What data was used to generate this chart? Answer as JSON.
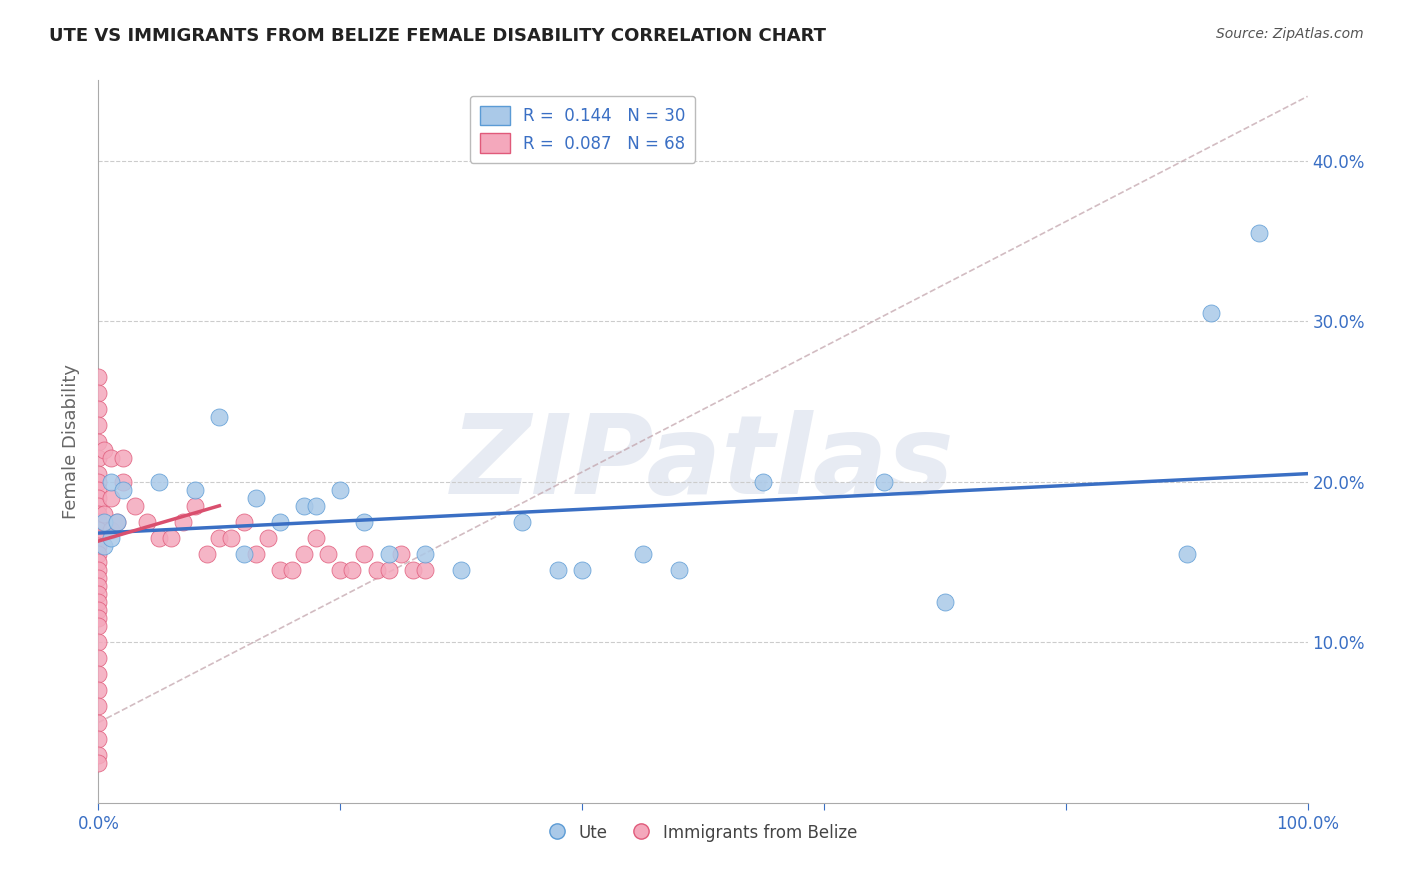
{
  "title": "UTE VS IMMIGRANTS FROM BELIZE FEMALE DISABILITY CORRELATION CHART",
  "source": "Source: ZipAtlas.com",
  "ylabel": "Female Disability",
  "watermark": "ZIPatlas",
  "legend_blue_R": "0.144",
  "legend_blue_N": "30",
  "legend_pink_R": "0.087",
  "legend_pink_N": "68",
  "xlim": [
    0.0,
    1.0
  ],
  "ylim": [
    0.0,
    0.45
  ],
  "yticks": [
    0.1,
    0.2,
    0.3,
    0.4
  ],
  "ytick_labels": [
    "10.0%",
    "20.0%",
    "30.0%",
    "40.0%"
  ],
  "xticks": [
    0.0,
    0.2,
    0.4,
    0.6,
    0.8,
    1.0
  ],
  "xtick_labels_show": [
    "0.0%",
    "",
    "",
    "",
    "",
    "100.0%"
  ],
  "blue_color": "#aac9e8",
  "pink_color": "#f4a8bc",
  "blue_edge_color": "#5b9bd5",
  "pink_edge_color": "#e05a7a",
  "blue_line_color": "#3a6fc4",
  "pink_line_color": "#d94f6e",
  "gray_dash_color": "#c8aab0",
  "title_color": "#222222",
  "axis_label_color": "#666666",
  "tick_color": "#3a6fc4",
  "grid_color": "#cccccc",
  "blue_scatter_x": [
    0.005,
    0.005,
    0.01,
    0.01,
    0.015,
    0.02,
    0.05,
    0.08,
    0.1,
    0.12,
    0.13,
    0.15,
    0.17,
    0.18,
    0.2,
    0.22,
    0.24,
    0.27,
    0.3,
    0.35,
    0.38,
    0.4,
    0.45,
    0.48,
    0.55,
    0.65,
    0.7,
    0.9,
    0.92,
    0.96
  ],
  "blue_scatter_y": [
    0.175,
    0.16,
    0.2,
    0.165,
    0.175,
    0.195,
    0.2,
    0.195,
    0.24,
    0.155,
    0.19,
    0.175,
    0.185,
    0.185,
    0.195,
    0.175,
    0.155,
    0.155,
    0.145,
    0.175,
    0.145,
    0.145,
    0.155,
    0.145,
    0.2,
    0.2,
    0.125,
    0.155,
    0.305,
    0.355
  ],
  "pink_scatter_x": [
    0.0,
    0.0,
    0.0,
    0.0,
    0.0,
    0.0,
    0.0,
    0.0,
    0.0,
    0.0,
    0.0,
    0.0,
    0.0,
    0.0,
    0.0,
    0.0,
    0.0,
    0.0,
    0.0,
    0.0,
    0.0,
    0.0,
    0.0,
    0.0,
    0.0,
    0.0,
    0.0,
    0.0,
    0.0,
    0.0,
    0.0,
    0.0,
    0.0,
    0.0,
    0.0,
    0.005,
    0.005,
    0.01,
    0.01,
    0.01,
    0.015,
    0.02,
    0.02,
    0.03,
    0.04,
    0.05,
    0.06,
    0.07,
    0.08,
    0.09,
    0.1,
    0.11,
    0.12,
    0.13,
    0.14,
    0.15,
    0.16,
    0.17,
    0.18,
    0.19,
    0.2,
    0.21,
    0.22,
    0.23,
    0.24,
    0.25,
    0.26,
    0.27
  ],
  "pink_scatter_y": [
    0.265,
    0.255,
    0.245,
    0.235,
    0.225,
    0.215,
    0.205,
    0.2,
    0.195,
    0.19,
    0.185,
    0.18,
    0.175,
    0.17,
    0.165,
    0.16,
    0.155,
    0.15,
    0.145,
    0.14,
    0.135,
    0.13,
    0.125,
    0.12,
    0.115,
    0.11,
    0.1,
    0.09,
    0.08,
    0.07,
    0.06,
    0.05,
    0.04,
    0.03,
    0.025,
    0.22,
    0.18,
    0.215,
    0.19,
    0.17,
    0.175,
    0.215,
    0.2,
    0.185,
    0.175,
    0.165,
    0.165,
    0.175,
    0.185,
    0.155,
    0.165,
    0.165,
    0.175,
    0.155,
    0.165,
    0.145,
    0.145,
    0.155,
    0.165,
    0.155,
    0.145,
    0.145,
    0.155,
    0.145,
    0.145,
    0.155,
    0.145,
    0.145
  ],
  "blue_trend_x": [
    0.0,
    1.0
  ],
  "blue_trend_y": [
    0.168,
    0.205
  ],
  "pink_trend_x": [
    0.0,
    0.1
  ],
  "pink_trend_y": [
    0.163,
    0.185
  ],
  "gray_trend_x": [
    0.0,
    1.0
  ],
  "gray_trend_y": [
    0.05,
    0.44
  ]
}
